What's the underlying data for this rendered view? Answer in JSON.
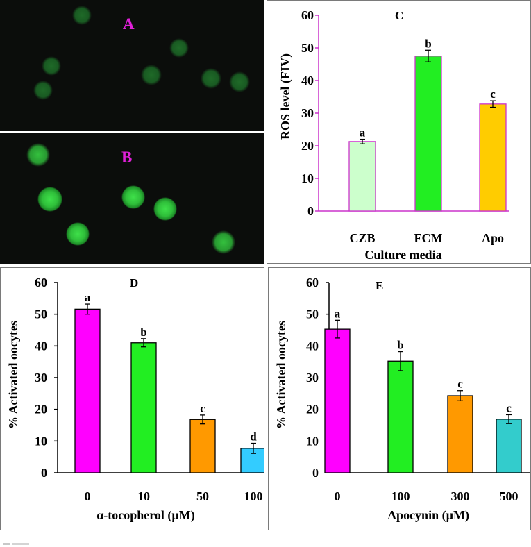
{
  "figure": {
    "colors": {
      "magenta": "#ff00ff",
      "green": "#22ee22",
      "orange": "#ff9900",
      "cyan": "#33ccff",
      "teal": "#33cccc",
      "lightgreen": "#ccffcc",
      "gold": "#ffcc00",
      "label": "#e020d8",
      "frame": "#cc33cc"
    }
  },
  "panels": {
    "A": {
      "label": "A"
    },
    "B": {
      "label": "B"
    }
  },
  "chart_data": [
    {
      "id": "C",
      "type": "bar",
      "panel_label": "C",
      "categories": [
        "CZB",
        "FCM",
        "Apo"
      ],
      "values": [
        21.3,
        47.5,
        32.8
      ],
      "errors": [
        0.7,
        1.8,
        1.0
      ],
      "letters": [
        "a",
        "b",
        "c"
      ],
      "colors": [
        "#ccffcc",
        "#22ee22",
        "#ffcc00"
      ],
      "ylabel": "ROS level (FIV)",
      "xlabel": "Culture media",
      "ylim": [
        0,
        60
      ],
      "yticks": [
        0,
        10,
        20,
        30,
        40,
        50,
        60
      ],
      "ytick_labels": [
        "0",
        "10",
        "20",
        "30",
        "40",
        "50",
        "60"
      ]
    },
    {
      "id": "D",
      "type": "bar",
      "panel_label": "D",
      "categories": [
        "0",
        "10",
        "50",
        "100"
      ],
      "values": [
        51.6,
        41.0,
        16.8,
        7.7
      ],
      "errors": [
        1.6,
        1.3,
        1.4,
        1.6
      ],
      "letters": [
        "a",
        "b",
        "c",
        "d"
      ],
      "colors": [
        "#ff00ff",
        "#22ee22",
        "#ff9900",
        "#33ccff"
      ],
      "ylabel": "% Activated oocytes",
      "xlabel": "α-tocopherol (µM)",
      "ylim": [
        0,
        60
      ],
      "yticks": [
        0,
        10,
        20,
        30,
        40,
        50,
        60
      ],
      "ytick_labels": [
        "0",
        "10",
        "20",
        "30",
        "40",
        "50",
        "60"
      ]
    },
    {
      "id": "E",
      "type": "bar",
      "panel_label": "E",
      "categories": [
        "0",
        "100",
        "300",
        "500"
      ],
      "values": [
        45.3,
        35.2,
        24.3,
        16.9
      ],
      "errors": [
        2.8,
        3.0,
        1.6,
        1.4
      ],
      "letters": [
        "a",
        "b",
        "c",
        "c"
      ],
      "colors": [
        "#ff00ff",
        "#22ee22",
        "#ff9900",
        "#33cccc"
      ],
      "ylabel": "% Activated oocytes",
      "xlabel": "Apocynin (µM)",
      "ylim": [
        0,
        60
      ],
      "yticks": [
        0,
        10,
        20,
        30,
        40,
        50,
        60
      ],
      "ytick_labels": [
        "0",
        "10",
        "20",
        "30",
        "40",
        "50",
        "60"
      ]
    }
  ]
}
